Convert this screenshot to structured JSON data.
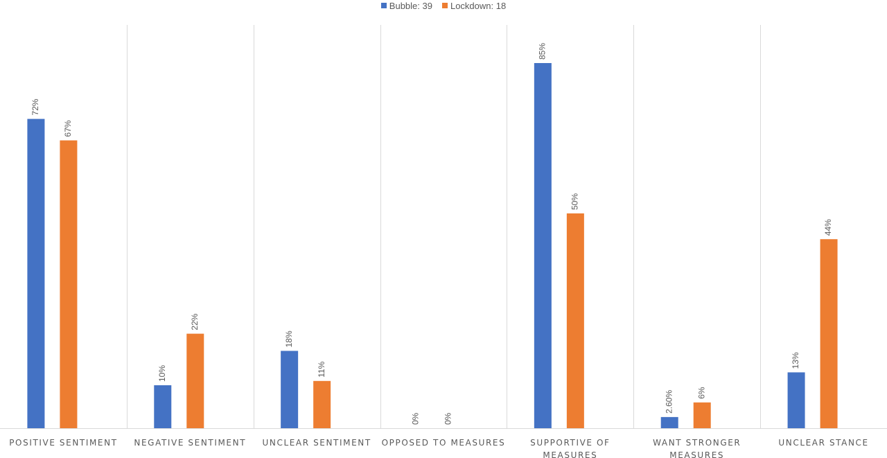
{
  "chart_data": {
    "type": "bar",
    "categories": [
      "POSITIVE SENTIMENT",
      "NEGATIVE SENTIMENT",
      "UNCLEAR SENTIMENT",
      "OPPOSED TO MEASURES",
      "SUPPORTIVE OF MEASURES",
      "WANT STRONGER MEASURES",
      "UNCLEAR STANCE"
    ],
    "category_label_lines": [
      [
        "POSITIVE SENTIMENT"
      ],
      [
        "NEGATIVE SENTIMENT"
      ],
      [
        "UNCLEAR SENTIMENT"
      ],
      [
        "OPPOSED TO MEASURES"
      ],
      [
        "SUPPORTIVE OF",
        "MEASURES"
      ],
      [
        "WANT STRONGER",
        "MEASURES"
      ],
      [
        "UNCLEAR STANCE"
      ]
    ],
    "series": [
      {
        "name": "Bubble: 39",
        "color": "#4472C4",
        "values": [
          72,
          10,
          18,
          0,
          85,
          2.6,
          13
        ],
        "labels": [
          "72%",
          "10%",
          "18%",
          "0%",
          "85%",
          "2.60%",
          "13%"
        ]
      },
      {
        "name": "Lockdown: 18",
        "color": "#ED7D31",
        "values": [
          67,
          22,
          11,
          0,
          50,
          6,
          44
        ],
        "labels": [
          "67%",
          "22%",
          "11%",
          "0%",
          "50%",
          "6%",
          "44%"
        ]
      }
    ],
    "ylim": [
      0,
      90
    ],
    "legend": "top-center",
    "grid": "vertical category separators"
  }
}
